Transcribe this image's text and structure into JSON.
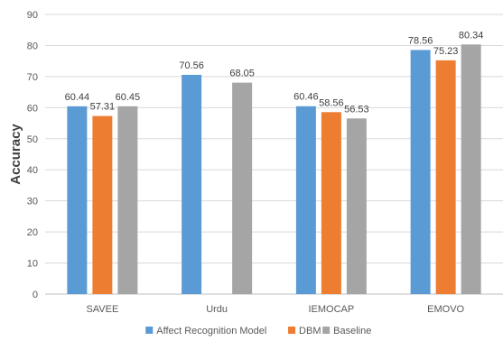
{
  "chart_data": {
    "type": "bar",
    "ylabel": "Accuracy",
    "ylim": [
      0,
      90
    ],
    "ytick_step": 10,
    "categories": [
      "SAVEE",
      "Urdu",
      "IEMOCAP",
      "EMOVO"
    ],
    "series": [
      {
        "name": "Affect Recognition Model",
        "color": "#5b9bd5",
        "values": [
          60.44,
          70.56,
          60.46,
          78.56
        ]
      },
      {
        "name": "DBM",
        "color": "#ed7d31",
        "values": [
          57.31,
          null,
          58.56,
          75.23
        ]
      },
      {
        "name": "Baseline",
        "color": "#a5a5a5",
        "values": [
          60.45,
          68.05,
          56.53,
          80.34
        ]
      }
    ],
    "data_label_text": [
      [
        "60.44",
        "70.56",
        "60.46",
        "78.56"
      ],
      [
        "57.31",
        "",
        "58.56",
        "75.23"
      ],
      [
        "60.45",
        "68.05",
        "56.53",
        "80.34"
      ]
    ],
    "grid": true,
    "legend_position": "bottom"
  }
}
